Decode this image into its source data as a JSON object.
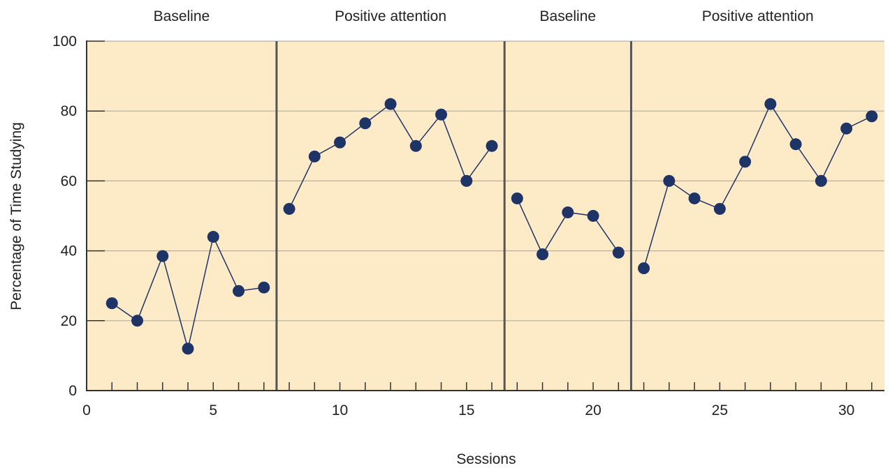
{
  "chart_data": {
    "type": "line",
    "xlabel": "Sessions",
    "ylabel": "Percentage of Time Studying",
    "xlim": [
      0,
      31.5
    ],
    "ylim": [
      0,
      100
    ],
    "x_ticks": [
      0,
      5,
      10,
      15,
      20,
      25,
      30
    ],
    "y_ticks": [
      0,
      20,
      40,
      60,
      80,
      100
    ],
    "grid": true,
    "colors": {
      "background": "#fdebc8",
      "marker": "#1e3466",
      "line": "#1e3466",
      "grid": "#b0b0b0",
      "divider": "#555555"
    },
    "phases": [
      {
        "label": "Baseline",
        "start": 0,
        "end": 7.5
      },
      {
        "label": "Positive attention",
        "start": 7.5,
        "end": 16.5
      },
      {
        "label": "Baseline",
        "start": 16.5,
        "end": 21.5
      },
      {
        "label": "Positive attention",
        "start": 21.5,
        "end": 31.5
      }
    ],
    "segments": [
      {
        "x": [
          1,
          2,
          3,
          4,
          5,
          6,
          7
        ],
        "y": [
          25,
          20,
          38.5,
          12,
          44,
          28.5,
          29.5
        ]
      },
      {
        "x": [
          8,
          9,
          10,
          11,
          12,
          13,
          14,
          15,
          16
        ],
        "y": [
          52,
          67,
          71,
          76.5,
          82,
          70,
          79,
          60,
          70
        ]
      },
      {
        "x": [
          17,
          18,
          19,
          20,
          21
        ],
        "y": [
          55,
          39,
          51,
          50,
          39.5
        ]
      },
      {
        "x": [
          22,
          23,
          24,
          25,
          26,
          27,
          28,
          29,
          30,
          31
        ],
        "y": [
          35,
          60,
          55,
          52,
          65.5,
          82,
          70.5,
          60,
          75,
          78.5
        ]
      }
    ]
  }
}
